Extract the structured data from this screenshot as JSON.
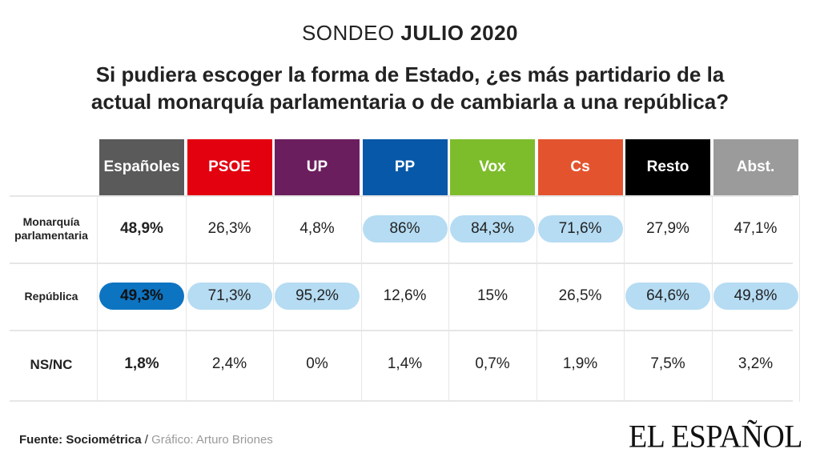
{
  "header": {
    "kicker_prefix": "SONDEO",
    "kicker_strong": "JULIO 2020",
    "title": "Si pudiera escoger la forma de Estado, ¿es más partidario de la actual monarquía parlamentaria o de cambiarla a una república?"
  },
  "chart_data": {
    "type": "table",
    "columns": [
      {
        "label": "Españoles",
        "color": "#5a5a5a"
      },
      {
        "label": "PSOE",
        "color": "#e3000f"
      },
      {
        "label": "UP",
        "color": "#6b1e5e"
      },
      {
        "label": "PP",
        "color": "#0758a8"
      },
      {
        "label": "Vox",
        "color": "#7dbd2c"
      },
      {
        "label": "Cs",
        "color": "#e3542e"
      },
      {
        "label": "Resto",
        "color": "#000000"
      },
      {
        "label": "Abst.",
        "color": "#9b9b9b"
      }
    ],
    "rows": [
      {
        "label": "Monarquía parlamentaria",
        "values": [
          "48,9%",
          "26,3%",
          "4,8%",
          "86%",
          "84,3%",
          "71,6%",
          "27,9%",
          "47,1%"
        ],
        "highlight": [
          "bold",
          "",
          "",
          "light",
          "light",
          "light",
          "",
          ""
        ]
      },
      {
        "label": "República",
        "values": [
          "49,3%",
          "71,3%",
          "95,2%",
          "12,6%",
          "15%",
          "26,5%",
          "64,6%",
          "49,8%"
        ],
        "highlight": [
          "strong",
          "light",
          "light",
          "",
          "",
          "",
          "light",
          "light"
        ]
      },
      {
        "label": "NS/NC",
        "values": [
          "1,8%",
          "2,4%",
          "0%",
          "1,4%",
          "0,7%",
          "1,9%",
          "7,5%",
          "3,2%"
        ],
        "highlight": [
          "bold",
          "",
          "",
          "",
          "",
          "",
          "",
          ""
        ]
      }
    ],
    "highlight_colors": {
      "light": "#b5dcf3",
      "strong": "#0d74c2"
    }
  },
  "footer": {
    "source": "Fuente: Sociométrica",
    "separator": " / ",
    "credit": "Gráfico: Arturo Briones",
    "logo": "EL ESPAÑOL"
  }
}
